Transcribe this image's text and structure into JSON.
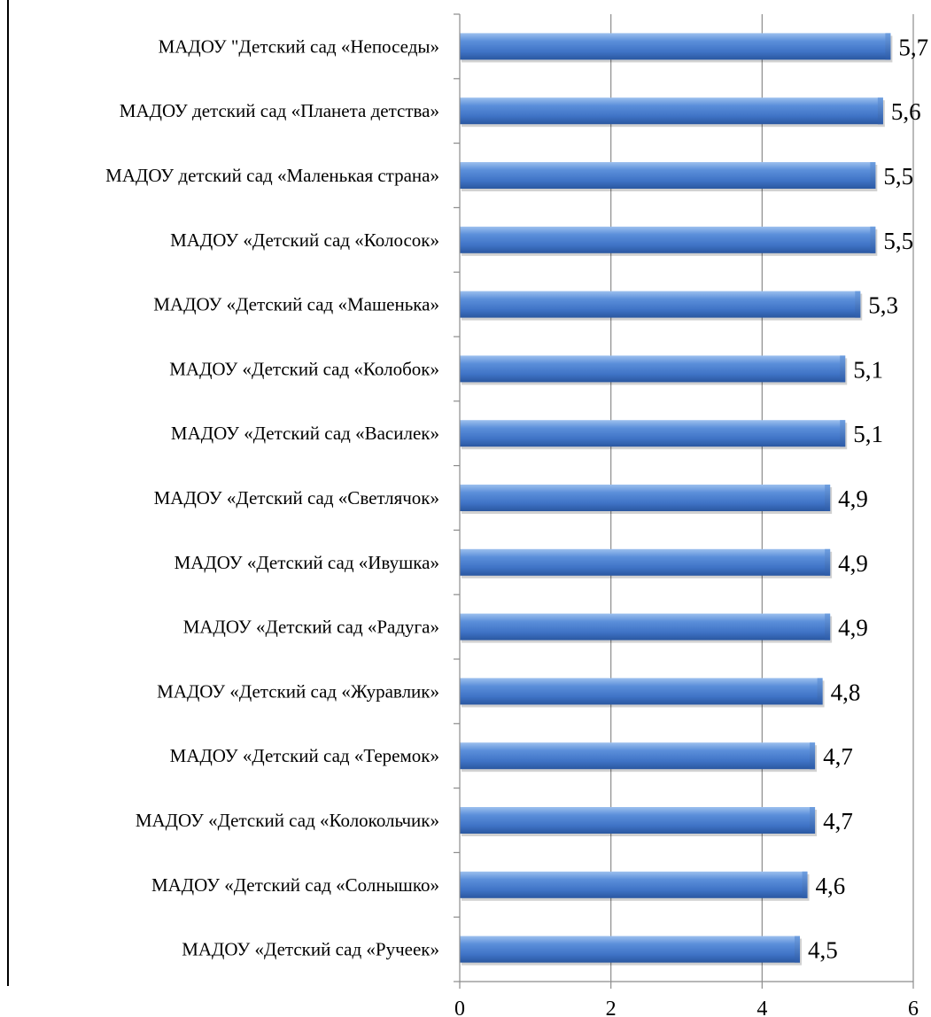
{
  "chart_data": {
    "type": "bar",
    "orientation": "horizontal",
    "title": "",
    "xlabel": "",
    "ylabel": "",
    "xlim": [
      0,
      6
    ],
    "x_ticks": [
      "0",
      "2",
      "4",
      "6"
    ],
    "grid": "vertical",
    "bar_color": "#4a7fd0",
    "categories": [
      "МАДОУ \"Детский сад «Непоседы»",
      "МАДОУ детский сад «Планета детства»",
      "МАДОУ детский сад «Маленькая страна»",
      "МАДОУ «Детский сад «Колосок»",
      "МАДОУ «Детский сад «Машенька»",
      "МАДОУ «Детский сад «Колобок»",
      "МАДОУ «Детский сад «Василек»",
      "МАДОУ «Детский сад «Светлячок»",
      "МАДОУ «Детский сад «Ивушка»",
      "МАДОУ «Детский сад «Радуга»",
      "МАДОУ «Детский сад «Журавлик»",
      "МАДОУ «Детский сад «Теремок»",
      "МАДОУ «Детский сад «Колокольчик»",
      "МАДОУ «Детский сад «Солнышко»",
      "МАДОУ «Детский сад «Ручеек»"
    ],
    "values": [
      5.7,
      5.6,
      5.5,
      5.5,
      5.3,
      5.1,
      5.1,
      4.9,
      4.9,
      4.9,
      4.8,
      4.7,
      4.7,
      4.6,
      4.5
    ],
    "value_labels": [
      "5,7",
      "5,6",
      "5,5",
      "5,5",
      "5,3",
      "5,1",
      "5,1",
      "4,9",
      "4,9",
      "4,9",
      "4,8",
      "4,7",
      "4,7",
      "4,6",
      "4,5"
    ]
  }
}
